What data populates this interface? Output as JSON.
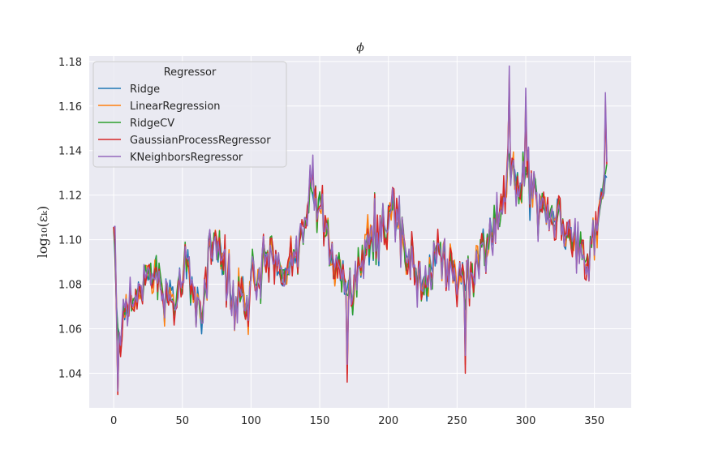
{
  "chart_data": {
    "type": "line",
    "title": "ϕ",
    "xlabel": "",
    "ylabel": "log₁₀(εₖ)",
    "xlim": [
      -17.8,
      376.8
    ],
    "ylim": [
      1.0245,
      1.1825
    ],
    "xticks": [
      0,
      50,
      100,
      150,
      200,
      250,
      300,
      350
    ],
    "yticks": [
      1.04,
      1.06,
      1.08,
      1.1,
      1.12,
      1.14,
      1.16,
      1.18
    ],
    "ytick_labels": [
      "1.04",
      "1.06",
      "1.08",
      "1.10",
      "1.12",
      "1.14",
      "1.16",
      "1.18"
    ],
    "grid": true,
    "legend": {
      "title": "Regressor",
      "placement": "top-left"
    },
    "background": "#eaeaf2",
    "x_start": 0,
    "x_end": 359,
    "anchors_x": [
      0,
      2,
      4,
      6,
      8,
      10,
      13,
      16,
      18,
      20,
      22,
      25,
      28,
      30,
      33,
      36,
      40,
      45,
      50,
      53,
      56,
      60,
      64,
      67,
      70,
      73,
      75,
      78,
      82,
      85,
      90,
      95,
      98,
      100,
      105,
      110,
      115,
      120,
      125,
      130,
      135,
      140,
      143,
      147,
      150,
      153,
      158,
      165,
      170,
      175,
      180,
      185,
      190,
      195,
      200,
      205,
      210,
      214,
      220,
      225,
      230,
      235,
      240,
      245,
      250,
      255,
      258,
      262,
      266,
      270,
      275,
      280,
      285,
      288,
      292,
      296,
      300,
      304,
      308,
      312,
      316,
      320,
      325,
      330,
      335,
      340,
      345,
      350,
      353,
      356,
      359
    ],
    "anchors_y": [
      1.105,
      1.08,
      1.05,
      1.06,
      1.07,
      1.065,
      1.075,
      1.072,
      1.078,
      1.075,
      1.082,
      1.08,
      1.085,
      1.09,
      1.082,
      1.078,
      1.075,
      1.072,
      1.08,
      1.09,
      1.085,
      1.07,
      1.065,
      1.075,
      1.09,
      1.1,
      1.105,
      1.095,
      1.085,
      1.075,
      1.07,
      1.075,
      1.07,
      1.08,
      1.085,
      1.09,
      1.095,
      1.092,
      1.085,
      1.09,
      1.095,
      1.11,
      1.12,
      1.118,
      1.115,
      1.108,
      1.095,
      1.088,
      1.082,
      1.078,
      1.088,
      1.095,
      1.105,
      1.1,
      1.11,
      1.108,
      1.1,
      1.095,
      1.088,
      1.082,
      1.085,
      1.095,
      1.092,
      1.088,
      1.08,
      1.082,
      1.085,
      1.088,
      1.092,
      1.095,
      1.102,
      1.112,
      1.12,
      1.135,
      1.128,
      1.125,
      1.13,
      1.12,
      1.118,
      1.115,
      1.11,
      1.112,
      1.108,
      1.105,
      1.1,
      1.095,
      1.092,
      1.102,
      1.112,
      1.12,
      1.13
    ],
    "series": [
      {
        "name": "Ridge",
        "color": "#1f77b4",
        "noise": 0.0115,
        "seed": 11
      },
      {
        "name": "LinearRegression",
        "color": "#ff7f0e",
        "noise": 0.0115,
        "seed": 23
      },
      {
        "name": "RidgeCV",
        "color": "#2ca02c",
        "noise": 0.0115,
        "seed": 37
      },
      {
        "name": "GaussianProcessRegressor",
        "color": "#d62728",
        "noise": 0.0125,
        "seed": 53
      },
      {
        "name": "KNeighborsRegressor",
        "color": "#9467bd",
        "noise": 0.0125,
        "seed": 71
      }
    ],
    "highlights": [
      {
        "x": 288,
        "y": 1.178
      },
      {
        "x": 300,
        "y": 1.168
      },
      {
        "x": 358,
        "y": 1.166
      },
      {
        "x": 256,
        "y": 1.048
      },
      {
        "x": 1,
        "y": 1.106
      },
      {
        "x": 3,
        "y": 1.032
      },
      {
        "x": 170,
        "y": 1.044
      },
      {
        "x": 145,
        "y": 1.138
      }
    ]
  }
}
